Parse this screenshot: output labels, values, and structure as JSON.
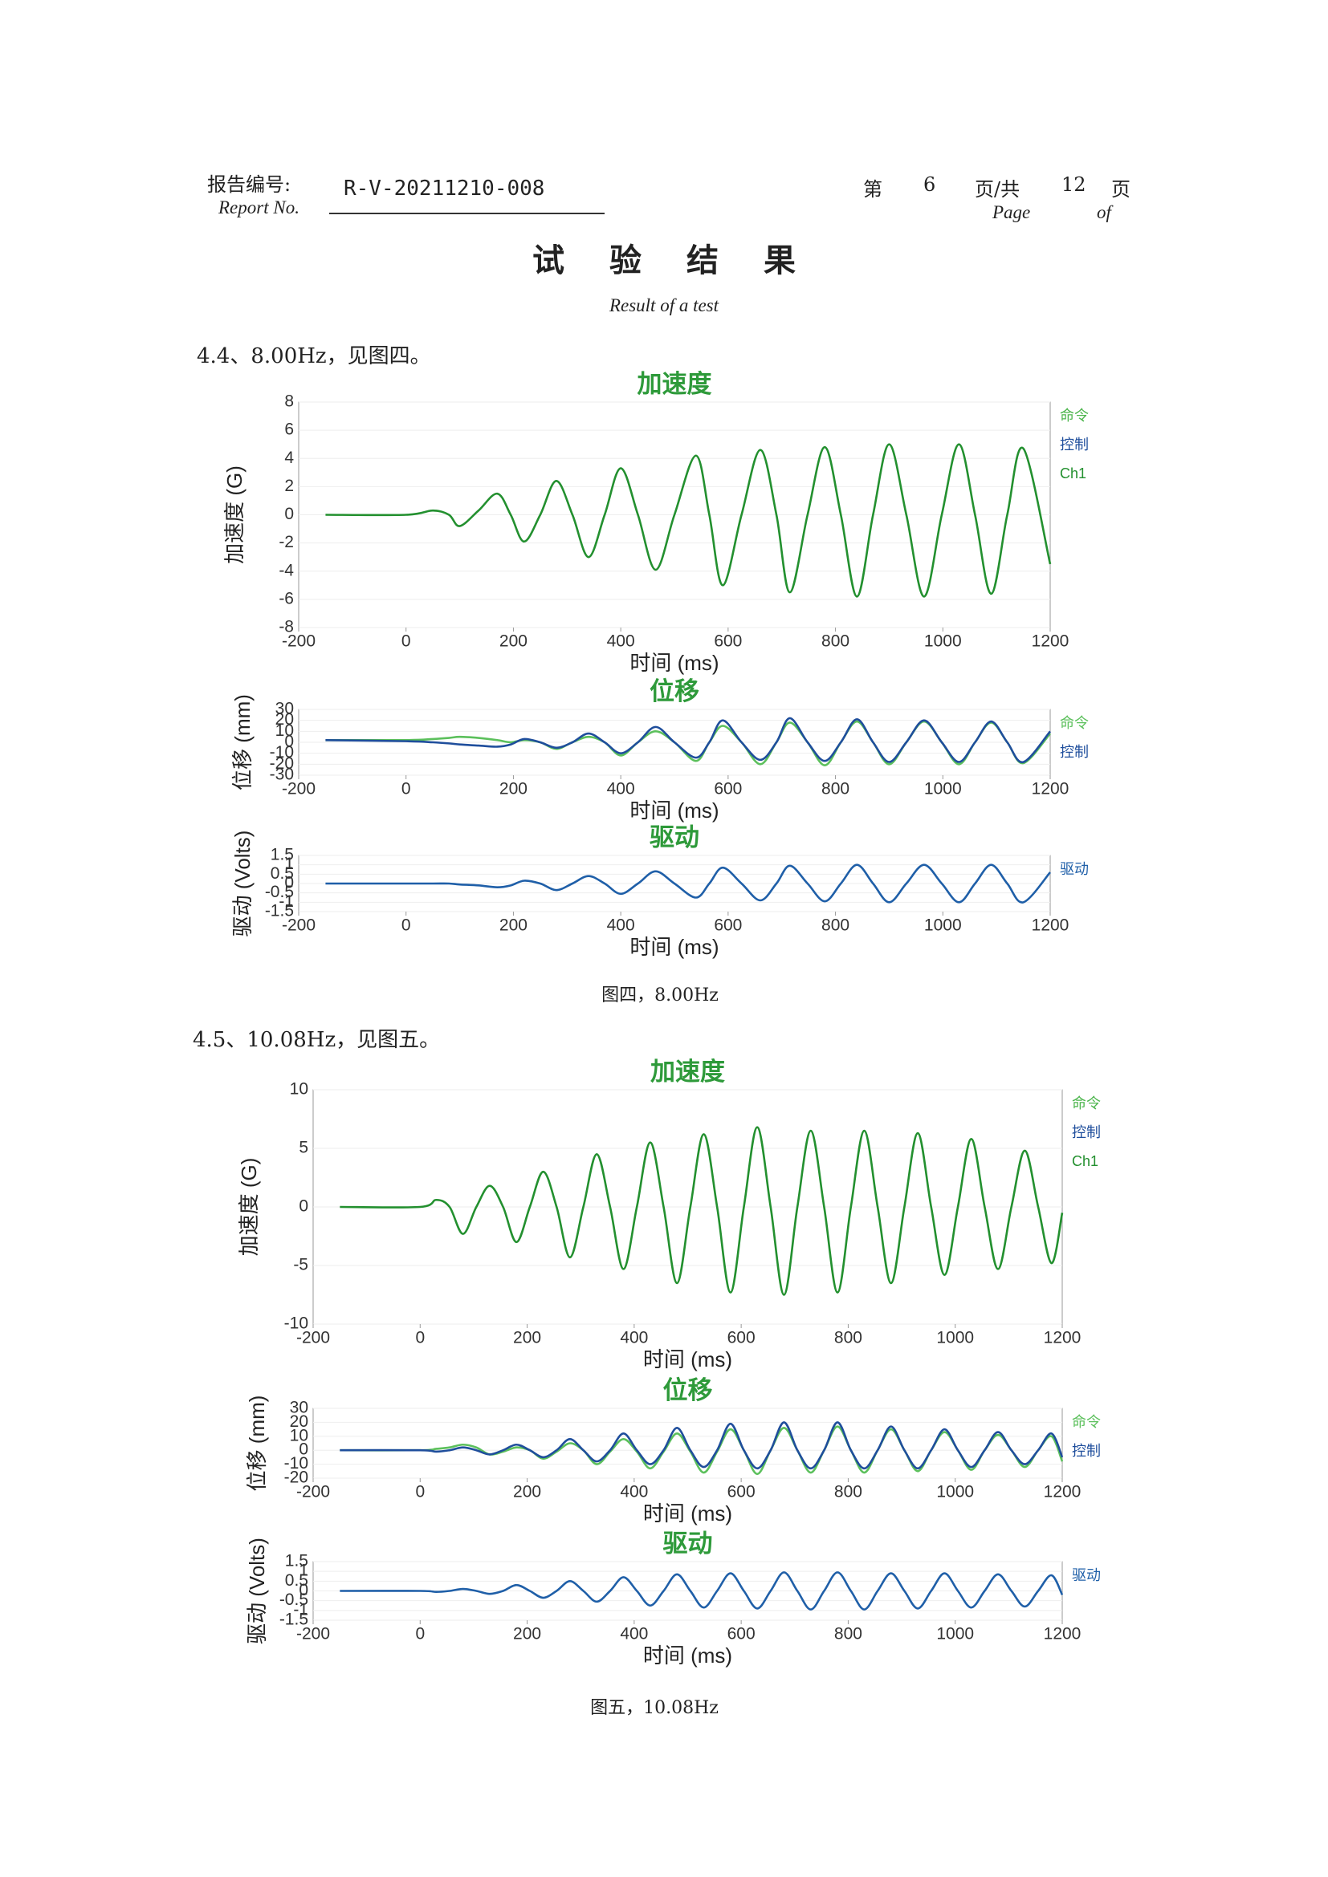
{
  "header": {
    "label_cn": "报告编号:",
    "label_en": "Report No.",
    "report_no": "R-V-20211210-008",
    "page_prefix": "第",
    "page": "6",
    "page_mid": "页/共",
    "total": "12",
    "page_suffix": "页",
    "page_en": "Page",
    "of_en": "of"
  },
  "title": "试验结果",
  "subtitle": "Result of a test",
  "sections": [
    {
      "heading": "4.4、8.00Hz，见图四。",
      "caption": "图四，8.00Hz",
      "chart_data": [
        {
          "type": "line",
          "title": "加速度",
          "x_label": "时间 (ms)",
          "y_label": "加速度 (G)",
          "xlim": [
            -200,
            1200
          ],
          "xticks": [
            -200,
            0,
            200,
            400,
            600,
            800,
            1000,
            1200
          ],
          "ylim": [
            -8,
            8
          ],
          "yticks": [
            -8,
            -6,
            -4,
            -2,
            0,
            2,
            4,
            6,
            8
          ],
          "x": [
            -150,
            0,
            50,
            80,
            100,
            135,
            170,
            195,
            220,
            250,
            280,
            310,
            340,
            370,
            400,
            432,
            465,
            500,
            540,
            565,
            590,
            625,
            660,
            690,
            715,
            748,
            780,
            810,
            840,
            870,
            900,
            932,
            965,
            998,
            1030,
            1060,
            1090,
            1120,
            1150,
            1200
          ],
          "legend_extra": [
            {
              "name": "命令",
              "color": "#4cb54c"
            },
            {
              "name": "控制",
              "color": "#1f4e9c"
            }
          ],
          "series": [
            {
              "name": "Ch1",
              "color": "#23902f",
              "values": [
                0,
                0,
                0.3,
                0,
                -0.8,
                0.3,
                1.5,
                0,
                -1.9,
                0,
                2.4,
                0,
                -3,
                0,
                3.3,
                0,
                -3.9,
                0,
                4.2,
                0,
                -5,
                0,
                4.6,
                0,
                -5.5,
                0,
                4.8,
                0,
                -5.8,
                0,
                5,
                0,
                -5.8,
                0,
                5,
                0,
                -5.6,
                0,
                4.7,
                -3.5
              ]
            }
          ]
        },
        {
          "type": "line",
          "title": "位移",
          "x_label": "时间 (ms)",
          "y_label": "位移 (mm)",
          "xlim": [
            -200,
            1200
          ],
          "xticks": [
            -200,
            0,
            200,
            400,
            600,
            800,
            1000,
            1200
          ],
          "ylim": [
            -30,
            30
          ],
          "yticks": [
            -30,
            -20,
            -10,
            0,
            10,
            20,
            30
          ],
          "x": [
            -150,
            0,
            50,
            80,
            100,
            135,
            170,
            195,
            220,
            250,
            280,
            310,
            340,
            370,
            400,
            432,
            465,
            500,
            540,
            565,
            590,
            625,
            660,
            690,
            715,
            748,
            780,
            810,
            840,
            870,
            900,
            932,
            965,
            998,
            1030,
            1060,
            1090,
            1120,
            1150,
            1200
          ],
          "series": [
            {
              "name": "命令",
              "color": "#5cc05c",
              "values": [
                2,
                2,
                3,
                4,
                5,
                4,
                2,
                0,
                2,
                0,
                -6,
                0,
                5,
                0,
                -12,
                0,
                10,
                0,
                -17,
                0,
                15,
                0,
                -20,
                0,
                18,
                0,
                -21,
                0,
                19,
                0,
                -20,
                0,
                19,
                0,
                -20,
                0,
                18,
                0,
                -19,
                8
              ]
            },
            {
              "name": "控制",
              "color": "#1f4e9c",
              "values": [
                2,
                1,
                0,
                -1,
                -2,
                -3,
                -4,
                -2,
                3,
                0,
                -5,
                0,
                8,
                0,
                -10,
                0,
                14,
                0,
                -14,
                0,
                20,
                0,
                -16,
                0,
                22,
                0,
                -17,
                0,
                21,
                0,
                -18,
                0,
                20,
                0,
                -18,
                0,
                19,
                0,
                -18,
                10
              ]
            }
          ]
        },
        {
          "type": "line",
          "title": "驱动",
          "x_label": "时间 (ms)",
          "y_label": "驱动 (Volts)",
          "xlim": [
            -200,
            1200
          ],
          "xticks": [
            -200,
            0,
            200,
            400,
            600,
            800,
            1000,
            1200
          ],
          "ylim": [
            -1.5,
            1.5
          ],
          "yticks": [
            -1.5,
            -1,
            -0.5,
            0,
            0.5,
            1,
            1.5
          ],
          "x": [
            -150,
            0,
            50,
            80,
            100,
            135,
            170,
            195,
            220,
            250,
            280,
            310,
            340,
            370,
            400,
            432,
            465,
            500,
            540,
            565,
            590,
            625,
            660,
            690,
            715,
            748,
            780,
            810,
            840,
            870,
            900,
            932,
            965,
            998,
            1030,
            1060,
            1090,
            1120,
            1150,
            1200
          ],
          "series": [
            {
              "name": "驱动",
              "color": "#1f5fa8",
              "values": [
                0,
                0,
                0,
                0,
                -0.05,
                -0.1,
                -0.2,
                -0.1,
                0.15,
                0,
                -0.35,
                0,
                0.4,
                0,
                -0.55,
                0,
                0.65,
                0,
                -0.75,
                0,
                0.85,
                0,
                -0.9,
                0,
                0.95,
                0,
                -0.95,
                0,
                1,
                0,
                -1,
                0,
                1,
                0,
                -1,
                0,
                1,
                0,
                -1,
                0.6
              ]
            }
          ]
        }
      ]
    },
    {
      "heading": "4.5、10.08Hz，见图五。",
      "caption": "图五，10.08Hz",
      "chart_data": [
        {
          "type": "line",
          "title": "加速度",
          "x_label": "时间 (ms)",
          "y_label": "加速度 (G)",
          "xlim": [
            -200,
            1200
          ],
          "xticks": [
            -200,
            0,
            200,
            400,
            600,
            800,
            1000,
            1200
          ],
          "ylim": [
            -10,
            10
          ],
          "yticks": [
            -10,
            -5,
            0,
            5,
            10
          ],
          "x": [
            -150,
            0,
            30,
            55,
            80,
            105,
            130,
            155,
            180,
            205,
            230,
            255,
            280,
            305,
            330,
            355,
            380,
            405,
            430,
            455,
            480,
            505,
            530,
            555,
            580,
            605,
            630,
            655,
            680,
            705,
            730,
            755,
            780,
            805,
            830,
            855,
            880,
            905,
            930,
            955,
            980,
            1005,
            1030,
            1055,
            1080,
            1105,
            1130,
            1155,
            1180,
            1200
          ],
          "legend_extra": [
            {
              "name": "命令",
              "color": "#4cb54c"
            },
            {
              "name": "控制",
              "color": "#1f4e9c"
            }
          ],
          "series": [
            {
              "name": "Ch1",
              "color": "#23902f",
              "values": [
                0,
                0,
                0.6,
                0,
                -2.3,
                0,
                1.8,
                0,
                -3,
                0,
                3,
                0,
                -4.3,
                0,
                4.5,
                0,
                -5.3,
                0,
                5.5,
                0,
                -6.5,
                0,
                6.2,
                0,
                -7.3,
                0,
                6.8,
                0,
                -7.5,
                0,
                6.5,
                0,
                -7.3,
                0,
                6.5,
                0,
                -6.5,
                0,
                6.3,
                0,
                -5.8,
                0,
                5.8,
                0,
                -5.3,
                0,
                4.8,
                0,
                -4.8,
                -0.5
              ]
            }
          ]
        },
        {
          "type": "line",
          "title": "位移",
          "x_label": "时间 (ms)",
          "y_label": "位移 (mm)",
          "xlim": [
            -200,
            1200
          ],
          "xticks": [
            -200,
            0,
            200,
            400,
            600,
            800,
            1000,
            1200
          ],
          "ylim": [
            -20,
            30
          ],
          "yticks": [
            -20,
            -10,
            0,
            10,
            20,
            30
          ],
          "x": [
            -150,
            0,
            30,
            55,
            80,
            105,
            130,
            155,
            180,
            205,
            230,
            255,
            280,
            305,
            330,
            355,
            380,
            405,
            430,
            455,
            480,
            505,
            530,
            555,
            580,
            605,
            630,
            655,
            680,
            705,
            730,
            755,
            780,
            805,
            830,
            855,
            880,
            905,
            930,
            955,
            980,
            1005,
            1030,
            1055,
            1080,
            1105,
            1130,
            1155,
            1180,
            1200
          ],
          "series": [
            {
              "name": "命令",
              "color": "#5cc05c",
              "values": [
                0,
                0,
                1,
                2,
                4,
                2,
                -3,
                -1,
                2,
                0,
                -6,
                -1,
                5,
                0,
                -10,
                -1,
                8,
                -1,
                -13,
                -1,
                12,
                -1,
                -16,
                -1,
                15,
                0,
                -17,
                0,
                16,
                0,
                -16,
                0,
                17,
                0,
                -16,
                0,
                15,
                0,
                -15,
                0,
                13,
                0,
                -14,
                0,
                11,
                0,
                -12,
                0,
                10,
                -8
              ]
            },
            {
              "name": "控制",
              "color": "#1f4e9c",
              "values": [
                0,
                0,
                -1,
                0,
                2,
                0,
                -3,
                0,
                4,
                0,
                -5,
                0,
                8,
                0,
                -8,
                0,
                12,
                0,
                -10,
                0,
                16,
                0,
                -12,
                0,
                19,
                0,
                -13,
                0,
                20,
                0,
                -13,
                0,
                20,
                0,
                -13,
                0,
                17,
                0,
                -13,
                0,
                15,
                0,
                -12,
                0,
                13,
                0,
                -10,
                0,
                12,
                -5
              ]
            }
          ]
        },
        {
          "type": "line",
          "title": "驱动",
          "x_label": "时间 (ms)",
          "y_label": "驱动 (Volts)",
          "xlim": [
            -200,
            1200
          ],
          "xticks": [
            -200,
            0,
            200,
            400,
            600,
            800,
            1000,
            1200
          ],
          "ylim": [
            -1.5,
            1.5
          ],
          "yticks": [
            -1.5,
            -1,
            -0.5,
            0,
            0.5,
            1,
            1.5
          ],
          "x": [
            -150,
            0,
            30,
            55,
            80,
            105,
            130,
            155,
            180,
            205,
            230,
            255,
            280,
            305,
            330,
            355,
            380,
            405,
            430,
            455,
            480,
            505,
            530,
            555,
            580,
            605,
            630,
            655,
            680,
            705,
            730,
            755,
            780,
            805,
            830,
            855,
            880,
            905,
            930,
            955,
            980,
            1005,
            1030,
            1055,
            1080,
            1105,
            1130,
            1155,
            1180,
            1200
          ],
          "series": [
            {
              "name": "驱动",
              "color": "#1f5fa8",
              "values": [
                0,
                0,
                -0.05,
                0,
                0.1,
                0,
                -0.15,
                0,
                0.3,
                0,
                -0.35,
                0,
                0.5,
                0,
                -0.55,
                0,
                0.7,
                0,
                -0.75,
                0,
                0.85,
                0,
                -0.85,
                0,
                0.9,
                0,
                -0.9,
                0,
                0.95,
                0,
                -0.95,
                0,
                0.95,
                0,
                -0.95,
                0,
                0.9,
                0,
                -0.9,
                0,
                0.9,
                0,
                -0.85,
                0,
                0.85,
                0,
                -0.8,
                0,
                0.8,
                -0.2
              ]
            }
          ]
        }
      ]
    }
  ]
}
